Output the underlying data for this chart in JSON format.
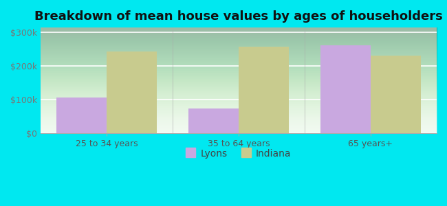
{
  "title": "Breakdown of mean house values by ages of householders",
  "categories": [
    "25 to 34 years",
    "35 to 64 years",
    "65 years+"
  ],
  "lyons_values": [
    107000,
    73000,
    263000
  ],
  "indiana_values": [
    243000,
    257000,
    232000
  ],
  "lyons_color": "#c9a8e0",
  "indiana_color": "#c8cb8e",
  "background_outer": "#00e8f0",
  "background_inner_top": "#b8e8c0",
  "background_inner_bottom": "#f0faf0",
  "ylim": [
    0,
    315000
  ],
  "yticks": [
    0,
    100000,
    200000,
    300000
  ],
  "ytick_labels": [
    "$0",
    "$100k",
    "$200k",
    "$300k"
  ],
  "legend_labels": [
    "Lyons",
    "Indiana"
  ],
  "bar_width": 0.38,
  "title_fontsize": 13,
  "tick_fontsize": 9,
  "legend_fontsize": 10
}
